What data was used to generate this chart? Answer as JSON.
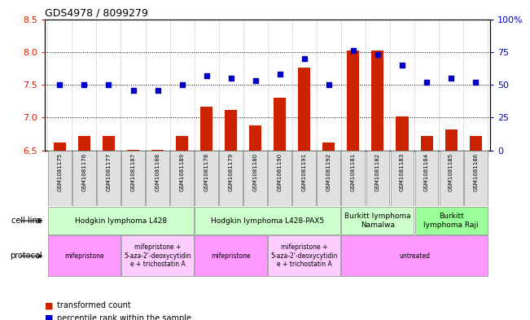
{
  "title": "GDS4978 / 8099279",
  "samples": [
    "GSM1081175",
    "GSM1081176",
    "GSM1081177",
    "GSM1081187",
    "GSM1081188",
    "GSM1081189",
    "GSM1081178",
    "GSM1081179",
    "GSM1081180",
    "GSM1081190",
    "GSM1081191",
    "GSM1081192",
    "GSM1081181",
    "GSM1081182",
    "GSM1081183",
    "GSM1081184",
    "GSM1081185",
    "GSM1081186"
  ],
  "bar_values": [
    6.62,
    6.72,
    6.72,
    6.51,
    6.51,
    6.72,
    7.17,
    7.12,
    6.88,
    7.3,
    7.76,
    6.62,
    8.02,
    8.02,
    7.02,
    6.72,
    6.82,
    6.72
  ],
  "dot_values": [
    50,
    50,
    50,
    46,
    46,
    50,
    57,
    55,
    53,
    58,
    70,
    50,
    76,
    73,
    65,
    52,
    55,
    52
  ],
  "bar_bottom": 6.5,
  "ylim_left": [
    6.5,
    8.5
  ],
  "ylim_right": [
    0,
    100
  ],
  "yticks_left": [
    6.5,
    7.0,
    7.5,
    8.0,
    8.5
  ],
  "yticks_right": [
    0,
    25,
    50,
    75,
    100
  ],
  "hlines": [
    7.0,
    7.5,
    8.0
  ],
  "bar_color": "#cc2200",
  "dot_color": "#0000cc",
  "cell_line_groups": [
    {
      "label": "Hodgkin lymphoma L428",
      "start": 0,
      "end": 5,
      "color": "#ccffcc"
    },
    {
      "label": "Hodgkin lymphoma L428-PAX5",
      "start": 6,
      "end": 11,
      "color": "#ccffcc"
    },
    {
      "label": "Burkitt lymphoma\nNamalwa",
      "start": 12,
      "end": 14,
      "color": "#ccffcc"
    },
    {
      "label": "Burkitt\nlymphoma Raji",
      "start": 15,
      "end": 17,
      "color": "#99ff99"
    }
  ],
  "protocol_groups": [
    {
      "label": "mifepristone",
      "start": 0,
      "end": 2,
      "color": "#ff99ff"
    },
    {
      "label": "mifepristone +\n5-aza-2'-deoxycytidin\ne + trichostatin A",
      "start": 3,
      "end": 5,
      "color": "#ffccff"
    },
    {
      "label": "mifepristone",
      "start": 6,
      "end": 8,
      "color": "#ff99ff"
    },
    {
      "label": "mifepristone +\n5-aza-2'-deoxycytidin\ne + trichostatin A",
      "start": 9,
      "end": 11,
      "color": "#ffccff"
    },
    {
      "label": "untreated",
      "start": 12,
      "end": 17,
      "color": "#ff99ff"
    }
  ],
  "legend_labels": [
    "transformed count",
    "percentile rank within the sample"
  ],
  "legend_colors": [
    "#cc2200",
    "#0000cc"
  ]
}
